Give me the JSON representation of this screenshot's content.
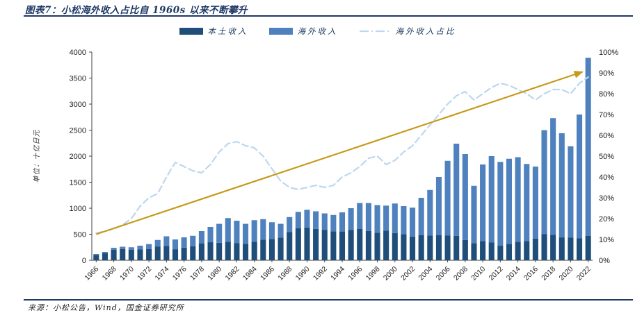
{
  "figure": {
    "title": "图表7：小松海外收入占比自 1960s 以来不断攀升",
    "source": "来源：小松公告，Wind，国金证券研究所"
  },
  "chart_data": {
    "type": "bar",
    "subtype": "stacked-bars-with-line",
    "title": "小松海外收入占比自 1960s 以来不断攀升",
    "legend_position": "top-center",
    "grid": false,
    "left_axis": {
      "title": "单位：十亿日元",
      "min": 0,
      "max": 4000,
      "ticks": [
        0,
        500,
        1000,
        1500,
        2000,
        2500,
        3000,
        3500,
        4000
      ]
    },
    "right_axis": {
      "min": 0,
      "max": 100,
      "ticks": [
        "0%",
        "10%",
        "20%",
        "30%",
        "40%",
        "50%",
        "60%",
        "70%",
        "80%",
        "90%",
        "100%"
      ]
    },
    "categories": [
      "1966",
      "1967",
      "1968",
      "1969",
      "1970",
      "1971",
      "1972",
      "1973",
      "1974",
      "1975",
      "1976",
      "1977",
      "1978",
      "1979",
      "1980",
      "1981",
      "1982",
      "1983",
      "1984",
      "1985",
      "1986",
      "1987",
      "1988",
      "1989",
      "1990",
      "1991",
      "1992",
      "1993",
      "1994",
      "1995",
      "1996",
      "1997",
      "1998",
      "1999",
      "2000",
      "2001",
      "2002",
      "2003",
      "2004",
      "2005",
      "2006",
      "2007",
      "2008",
      "2009",
      "2010",
      "2011",
      "2012",
      "2013",
      "2014",
      "2015",
      "2016",
      "2017",
      "2018",
      "2019",
      "2020",
      "2021",
      "2022"
    ],
    "x_label_step": 2,
    "series": [
      {
        "name": "本土收入",
        "kind": "bar",
        "color": "#1E4E79",
        "values": [
          104,
          138,
          204,
          216,
          200,
          207,
          217,
          265,
          276,
          212,
          242,
          268,
          325,
          346,
          336,
          356,
          327,
          315,
          354,
          395,
          409,
          434,
          540,
          614,
          630,
          602,
          585,
          557,
          552,
          580,
          605,
          561,
          530,
          567,
          523,
          499,
          455,
          480,
          473,
          480,
          478,
          470,
          388,
          329,
          368,
          340,
          284,
          312,
          356,
          370,
          414,
          500,
          491,
          439,
          438,
          420,
          467
        ]
      },
      {
        "name": "海外收入",
        "kind": "bar",
        "color": "#4E81BD",
        "values": [
          16,
          22,
          36,
          44,
          50,
          73,
          93,
          125,
          184,
          188,
          198,
          202,
          235,
          294,
          364,
          454,
          433,
          385,
          416,
          395,
          321,
          266,
          290,
          316,
          340,
          338,
          315,
          313,
          368,
          420,
          495,
          539,
          530,
          483,
          567,
          541,
          556,
          720,
          877,
          1120,
          1432,
          1770,
          1652,
          1101,
          1472,
          1660,
          1606,
          1638,
          1624,
          1480,
          1386,
          2000,
          2239,
          2001,
          1752,
          2380,
          3423
        ]
      },
      {
        "name": "海外收入占比",
        "kind": "line",
        "axis": "right",
        "style": "dashed",
        "color": "#BDD7EE",
        "values": [
          13,
          14,
          15,
          17,
          20,
          26,
          30,
          32,
          40,
          47,
          45,
          43,
          42,
          46,
          52,
          56,
          57,
          55,
          54,
          50,
          44,
          38,
          35,
          34,
          35,
          36,
          35,
          36,
          40,
          42,
          45,
          49,
          50,
          46,
          48,
          52,
          55,
          60,
          65,
          70,
          75,
          79,
          81,
          77,
          80,
          83,
          85,
          84,
          82,
          80,
          77,
          80,
          82,
          82,
          80,
          85,
          88
        ]
      }
    ],
    "arrow": {
      "color": "#C79A1B",
      "from": {
        "year": "1966",
        "value": 500
      },
      "to": {
        "year": "2022",
        "value": 3620
      }
    }
  }
}
